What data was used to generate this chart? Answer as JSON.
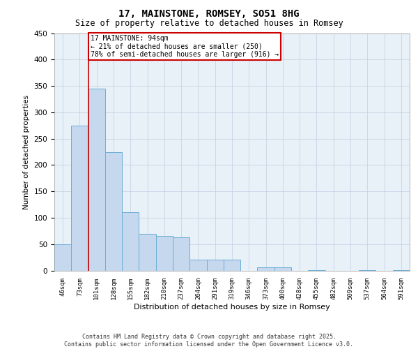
{
  "title": "17, MAINSTONE, ROMSEY, SO51 8HG",
  "subtitle": "Size of property relative to detached houses in Romsey",
  "xlabel": "Distribution of detached houses by size in Romsey",
  "ylabel": "Number of detached properties",
  "categories": [
    "46sqm",
    "73sqm",
    "101sqm",
    "128sqm",
    "155sqm",
    "182sqm",
    "210sqm",
    "237sqm",
    "264sqm",
    "291sqm",
    "319sqm",
    "346sqm",
    "373sqm",
    "400sqm",
    "428sqm",
    "455sqm",
    "482sqm",
    "509sqm",
    "537sqm",
    "564sqm",
    "591sqm"
  ],
  "values": [
    50,
    275,
    345,
    225,
    110,
    70,
    65,
    63,
    20,
    20,
    20,
    0,
    6,
    6,
    0,
    1,
    0,
    0,
    1,
    0,
    1
  ],
  "bar_color": "#c5d8ee",
  "bar_edge_color": "#6baed6",
  "vline_color": "#cc0000",
  "annotation_text": "17 MAINSTONE: 94sqm\n← 21% of detached houses are smaller (250)\n78% of semi-detached houses are larger (916) →",
  "annotation_box_color": "#cc0000",
  "ylim": [
    0,
    450
  ],
  "yticks": [
    0,
    50,
    100,
    150,
    200,
    250,
    300,
    350,
    400,
    450
  ],
  "footer1": "Contains HM Land Registry data © Crown copyright and database right 2025.",
  "footer2": "Contains public sector information licensed under the Open Government Licence v3.0.",
  "bg_color": "#ffffff",
  "grid_color": "#c0cfe0",
  "plot_bg_color": "#e8f0f8"
}
